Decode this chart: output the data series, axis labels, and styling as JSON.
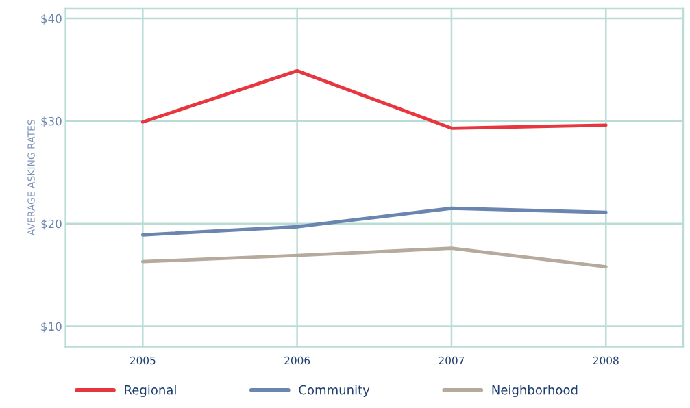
{
  "chart_data": {
    "type": "line",
    "ylabel": "AVERAGE ASKING RATES",
    "categories": [
      "2005",
      "2006",
      "2007",
      "2008"
    ],
    "series": [
      {
        "name": "Regional",
        "color": "#e8363f",
        "values": [
          29.9,
          34.9,
          29.3,
          29.6
        ]
      },
      {
        "name": "Community",
        "color": "#6a86b0",
        "values": [
          18.9,
          19.7,
          21.5,
          21.1
        ]
      },
      {
        "name": "Neighborhood",
        "color": "#b5aa9c",
        "values": [
          16.3,
          16.9,
          17.6,
          15.8
        ]
      }
    ],
    "ylim": [
      8,
      41
    ],
    "yticks": [
      {
        "value": 10,
        "label": "$10"
      },
      {
        "value": 20,
        "label": "$20"
      },
      {
        "value": 30,
        "label": "$30"
      },
      {
        "value": 40,
        "label": "$40"
      }
    ],
    "grid": true,
    "legend": "bottom",
    "marker": "none",
    "line_style": "solid"
  }
}
